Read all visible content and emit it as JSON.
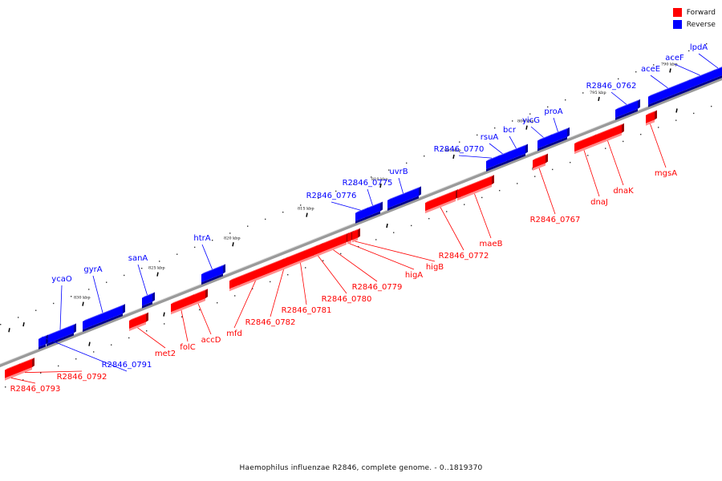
{
  "legend": [
    {
      "label": "Forward",
      "color": "#ff0000"
    },
    {
      "label": "Reverse",
      "color": "#0000ff"
    }
  ],
  "caption": "Haemophilus influenzae R2846, complete genome. - 0..1819370",
  "ticks": [
    "830 kbp",
    "825 kbp",
    "820 kbp",
    "815 kbp",
    "810 kbp",
    "805 kbp",
    "800 kbp",
    "795 kbp",
    "790 kbp"
  ],
  "genes": [
    {
      "name": "ycaO",
      "strand": "reverse"
    },
    {
      "name": "gyrA",
      "strand": "reverse"
    },
    {
      "name": "sanA",
      "strand": "reverse"
    },
    {
      "name": "htrA",
      "strand": "reverse"
    },
    {
      "name": "R2846_0776",
      "strand": "reverse"
    },
    {
      "name": "R2846_0775",
      "strand": "reverse"
    },
    {
      "name": "uvrB",
      "strand": "reverse"
    },
    {
      "name": "R2846_0770",
      "strand": "reverse"
    },
    {
      "name": "rsuA",
      "strand": "reverse"
    },
    {
      "name": "bcr",
      "strand": "reverse"
    },
    {
      "name": "yicG",
      "strand": "reverse"
    },
    {
      "name": "proA",
      "strand": "reverse"
    },
    {
      "name": "R2846_0762",
      "strand": "reverse"
    },
    {
      "name": "aceE",
      "strand": "reverse"
    },
    {
      "name": "aceF",
      "strand": "reverse"
    },
    {
      "name": "lpdA",
      "strand": "reverse"
    },
    {
      "name": "R2846_0791",
      "strand": "reverse"
    },
    {
      "name": "R2846_0793",
      "strand": "forward"
    },
    {
      "name": "R2846_0792",
      "strand": "forward"
    },
    {
      "name": "met2",
      "strand": "forward"
    },
    {
      "name": "folC",
      "strand": "forward"
    },
    {
      "name": "accD",
      "strand": "forward"
    },
    {
      "name": "mfd",
      "strand": "forward"
    },
    {
      "name": "R2846_0782",
      "strand": "forward"
    },
    {
      "name": "R2846_0781",
      "strand": "forward"
    },
    {
      "name": "R2846_0780",
      "strand": "forward"
    },
    {
      "name": "R2846_0779",
      "strand": "forward"
    },
    {
      "name": "higA",
      "strand": "forward"
    },
    {
      "name": "higB",
      "strand": "forward"
    },
    {
      "name": "R2846_0772",
      "strand": "forward"
    },
    {
      "name": "maeB",
      "strand": "forward"
    },
    {
      "name": "R2846_0767",
      "strand": "forward"
    },
    {
      "name": "dnaJ",
      "strand": "forward"
    },
    {
      "name": "dnaK",
      "strand": "forward"
    },
    {
      "name": "mgsA",
      "strand": "forward"
    }
  ]
}
